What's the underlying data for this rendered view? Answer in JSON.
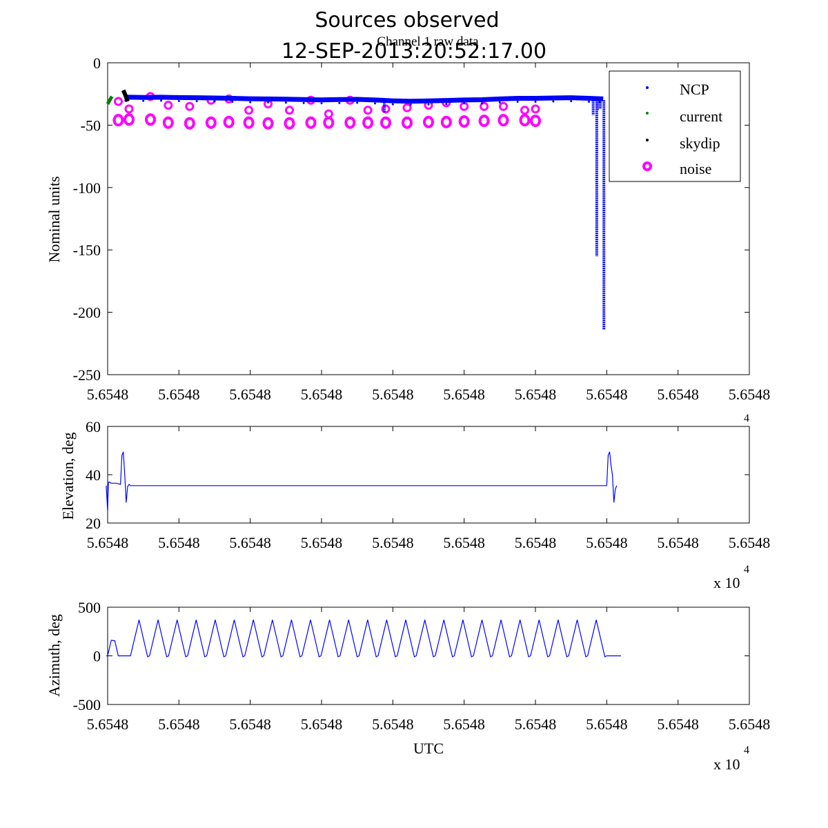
{
  "figure": {
    "title_line1": "Sources observed",
    "title_line2": "12-SEP-2013:20:52:17.00",
    "subtitle": "Channel 1 raw data"
  },
  "colors": {
    "ncp": "#0000ff",
    "current": "#008000",
    "skydip": "#000000",
    "noise": "#ff00ff",
    "trace": "#0000ff"
  },
  "chart_data": [
    {
      "type": "scatter",
      "id": "raw",
      "title": "Channel 1 raw data",
      "xlabel": "",
      "ylabel": "Nominal units",
      "ylim": [
        -250,
        0
      ],
      "yticks": [
        0,
        -50,
        -100,
        -150,
        -200,
        -250
      ],
      "xlim": [
        0,
        9
      ],
      "xtick_labels": [
        "5.6548",
        "5.6548",
        "5.6548",
        "5.6548",
        "5.6548",
        "5.6548",
        "5.6548",
        "5.6548",
        "5.6548",
        "5.6548"
      ],
      "x_exponent": "",
      "legend_position": "top-right",
      "legend": [
        {
          "name": "NCP",
          "marker": "dot",
          "color_key": "ncp"
        },
        {
          "name": "current",
          "marker": "dot",
          "color_key": "current"
        },
        {
          "name": "skydip",
          "marker": "dot",
          "color_key": "skydip"
        },
        {
          "name": "noise",
          "marker": "circle",
          "color_key": "noise"
        }
      ],
      "series": [
        {
          "name": "NCP",
          "x": [
            0.25,
            0.5,
            0.75,
            1.0,
            1.25,
            1.5,
            1.75,
            2.0,
            2.25,
            2.5,
            2.75,
            3.0,
            3.25,
            3.5,
            3.75,
            4.0,
            4.25,
            4.5,
            4.75,
            5.0,
            5.25,
            5.5,
            5.75,
            6.0,
            6.25,
            6.5,
            6.75,
            6.9,
            6.95
          ],
          "y": [
            -27.5,
            -27.8,
            -27.6,
            -27.9,
            -28.0,
            -28.2,
            -28.5,
            -28.8,
            -29.0,
            -29.2,
            -29.5,
            -29.7,
            -29.5,
            -29.3,
            -29.8,
            -30.5,
            -30.8,
            -30.6,
            -30.2,
            -29.8,
            -29.6,
            -29.0,
            -28.5,
            -28.5,
            -28.2,
            -28.0,
            -28.5,
            -28.8,
            -29.0
          ],
          "dips": [
            {
              "x": 3.88,
              "y": -40
            },
            {
              "x": 6.81,
              "y": -42
            },
            {
              "x": 6.87,
              "y": -38
            },
            {
              "x": 6.91,
              "y": -37
            },
            {
              "x": 6.86,
              "y": -155
            },
            {
              "x": 6.96,
              "y": -214
            }
          ]
        },
        {
          "name": "current",
          "x": [
            0.0,
            0.03,
            0.06
          ],
          "y": [
            -33,
            -30,
            -27
          ]
        },
        {
          "name": "skydip",
          "x": [
            0.22,
            0.25,
            0.28
          ],
          "y": [
            -22,
            -26,
            -31
          ]
        },
        {
          "name": "noise",
          "x": [
            0.15,
            0.3,
            0.6,
            0.85,
            1.15,
            1.45,
            1.7,
            1.98,
            2.25,
            2.55,
            2.85,
            3.1,
            3.4,
            3.65,
            3.9,
            4.2,
            4.5,
            4.75,
            5.0,
            5.28,
            5.55,
            5.85,
            6.0
          ],
          "y": [
            -46,
            -45.5,
            -45.5,
            -48,
            -48.5,
            -48,
            -47.5,
            -48,
            -48.5,
            -48.5,
            -48,
            -48,
            -48,
            -48,
            -48,
            -48,
            -47.5,
            -47.5,
            -47,
            -46.5,
            -46,
            -46,
            -46.5
          ],
          "upper_y": [
            -31,
            -37,
            -27,
            -34,
            -35,
            -30,
            -29,
            -38,
            -33,
            -38,
            -30,
            -41,
            -30,
            -38,
            -37,
            -36,
            -34,
            -32,
            -35,
            -35,
            -35,
            -38,
            -37
          ]
        }
      ]
    },
    {
      "type": "line",
      "id": "elevation",
      "xlabel": "",
      "ylabel": "Elevation, deg",
      "ylim": [
        20,
        60
      ],
      "yticks": [
        20,
        40,
        60
      ],
      "xlim": [
        0,
        9
      ],
      "xtick_labels": [
        "5.6548",
        "5.6548",
        "5.6548",
        "5.6548",
        "5.6548",
        "5.6548",
        "5.6548",
        "5.6548",
        "5.6548",
        "5.6548"
      ],
      "x_exponent_base": "x 10",
      "x_exponent_power": "4",
      "series": [
        {
          "name": "elevation",
          "x": [
            -0.02,
            0.0,
            0.01,
            0.02,
            0.05,
            0.12,
            0.18,
            0.2,
            0.22,
            0.24,
            0.26,
            0.28,
            0.3,
            0.32,
            0.35,
            0.4,
            6.9,
            7.0,
            7.02,
            7.04,
            7.06,
            7.08,
            7.1,
            7.12,
            7.14
          ],
          "y": [
            35.5,
            25,
            36.5,
            37,
            36.5,
            36.5,
            36,
            48,
            49.5,
            40,
            28.5,
            35,
            36,
            35.5,
            35.5,
            35.5,
            35.5,
            35.5,
            48,
            49.5,
            44,
            40,
            28.5,
            34,
            35.5
          ]
        }
      ]
    },
    {
      "type": "line",
      "id": "azimuth",
      "xlabel": "UTC",
      "ylabel": "Azimuth, deg",
      "ylim": [
        -500,
        500
      ],
      "yticks": [
        500,
        0,
        -500
      ],
      "xlim": [
        0,
        9
      ],
      "xtick_labels": [
        "5.6548",
        "5.6548",
        "5.6548",
        "5.6548",
        "5.6548",
        "5.6548",
        "5.6548",
        "5.6548",
        "5.6548",
        "5.6548"
      ],
      "x_exponent_base": "x 10",
      "x_exponent_power": "4",
      "series": [
        {
          "name": "azimuth",
          "start": {
            "x": [
              -0.02,
              0.0,
              0.05,
              0.1,
              0.15
            ],
            "y": [
              0,
              0,
              160,
              155,
              0
            ]
          },
          "flat": {
            "x": [
              0.15,
              0.32
            ],
            "y": [
              0,
              0
            ]
          },
          "triangle": {
            "x_start": 0.32,
            "x_end": 7.0,
            "cycles": 25,
            "peak": 370,
            "trough": -10
          },
          "end": {
            "x": [
              7.0,
              7.2
            ],
            "y": [
              0,
              0
            ]
          }
        }
      ]
    }
  ]
}
